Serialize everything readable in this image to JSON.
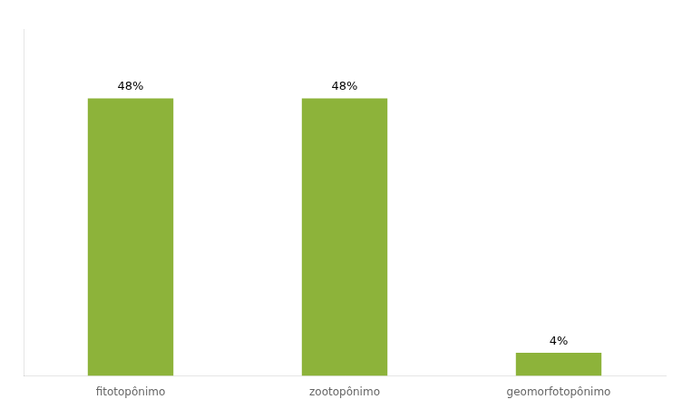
{
  "chart_data": {
    "type": "bar",
    "categories": [
      "fitotopônimo",
      "zootopônimo",
      "geomorfotopônimo"
    ],
    "values": [
      48,
      48,
      4
    ],
    "value_labels": [
      "48%",
      "48%",
      "4%"
    ],
    "data_labels": true,
    "color": "#8db33a",
    "ylim": [
      0,
      60
    ],
    "grid": false,
    "tick_labels": "x"
  }
}
